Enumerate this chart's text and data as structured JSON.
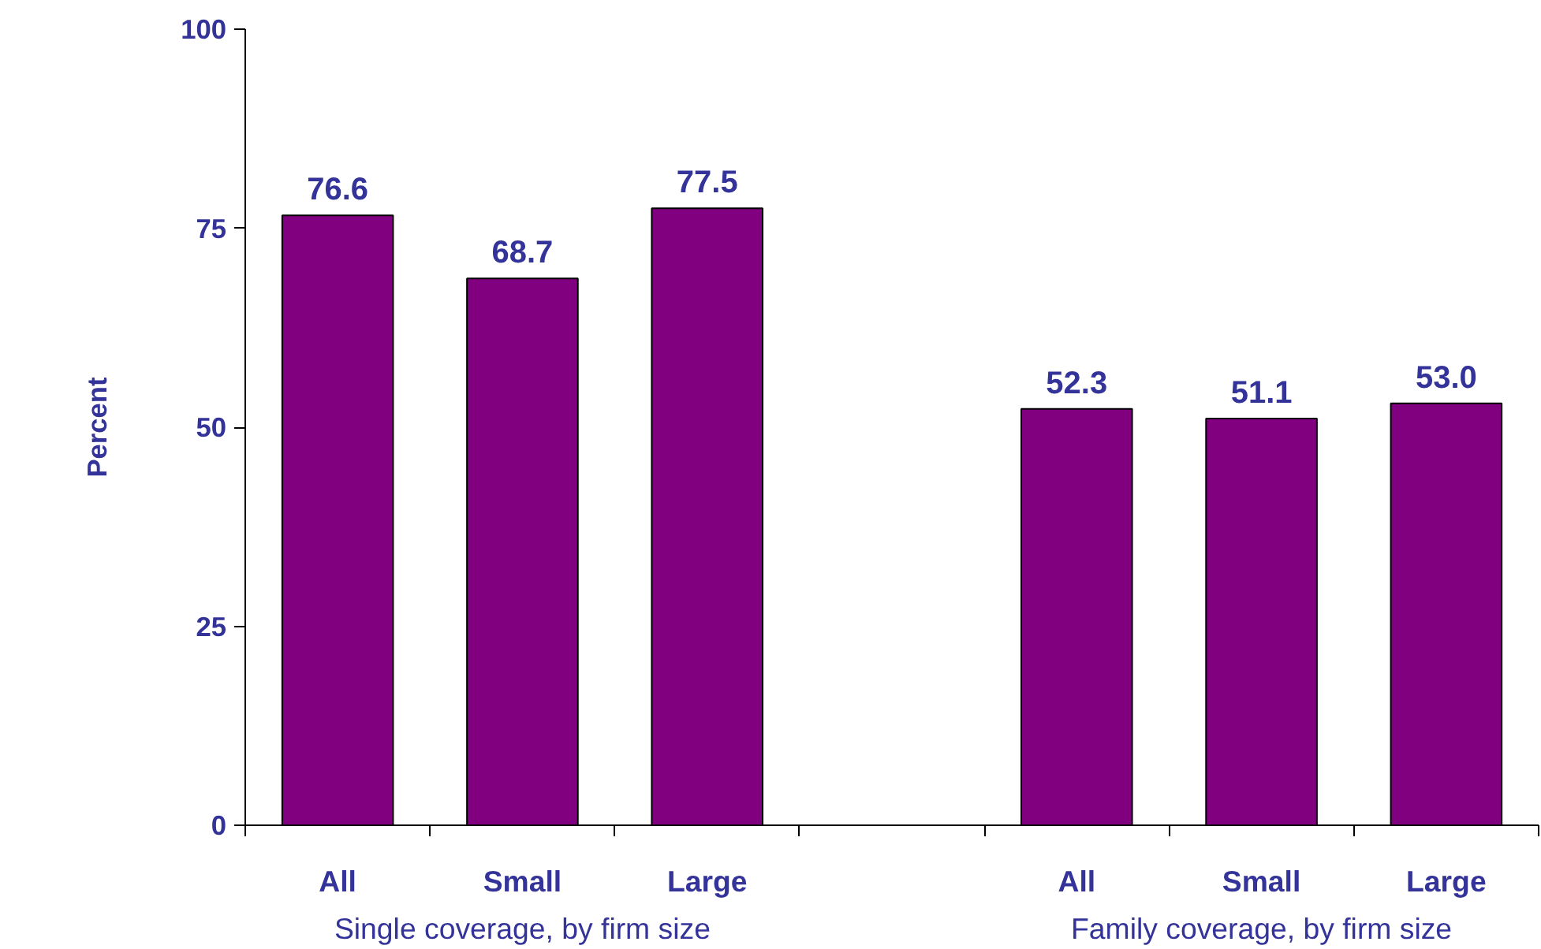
{
  "chart_data": {
    "type": "bar",
    "ylabel": "Percent",
    "categories": [
      "All",
      "Small",
      "Large",
      null,
      "All",
      "Small",
      "Large"
    ],
    "values": [
      76.6,
      68.7,
      77.5,
      null,
      52.3,
      51.1,
      53.0
    ],
    "value_labels": [
      "76.6",
      "68.7",
      "77.5",
      null,
      "52.3",
      "51.1",
      "53.0"
    ],
    "color": "#800080",
    "ylim": [
      0,
      100
    ],
    "yticks": [
      0,
      25,
      50,
      75,
      100
    ],
    "grid": false,
    "annotations": [
      "Single coverage, by firm size",
      "Family coverage, by firm size"
    ]
  }
}
